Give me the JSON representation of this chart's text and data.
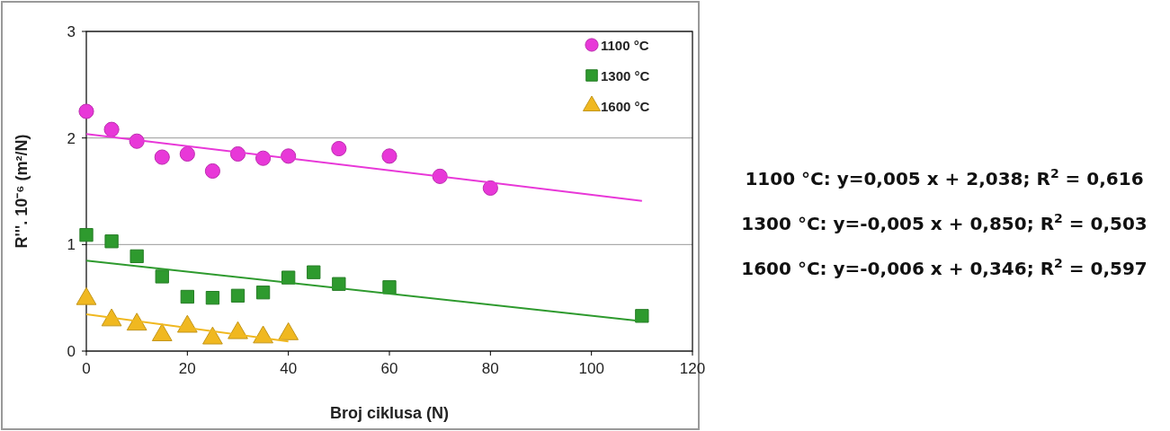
{
  "chart_data": {
    "type": "scatter",
    "xlabel": "Broj ciklusa (N)",
    "ylabel": "R'''. 10⁻⁶ (m²/N)",
    "xlim": [
      0,
      120
    ],
    "xticks": [
      0,
      20,
      40,
      60,
      80,
      100,
      120
    ],
    "ylim": [
      0,
      3
    ],
    "yticks": [
      0,
      1,
      2,
      3
    ],
    "grid": "y",
    "legend": "top right",
    "series": [
      {
        "name": "1100 °C",
        "color": "#e838d8",
        "marker": "circle",
        "x": [
          0,
          5,
          10,
          15,
          20,
          25,
          30,
          35,
          40,
          50,
          60,
          70,
          80
        ],
        "values": [
          2.25,
          2.08,
          1.97,
          1.82,
          1.85,
          1.69,
          1.85,
          1.81,
          1.83,
          1.9,
          1.83,
          1.64,
          1.53
        ]
      },
      {
        "name": "1300 °C",
        "color": "#2e9a2e",
        "marker": "square",
        "x": [
          0,
          5,
          10,
          15,
          20,
          25,
          30,
          35,
          40,
          45,
          50,
          60,
          110
        ],
        "values": [
          1.09,
          1.03,
          0.89,
          0.7,
          0.51,
          0.5,
          0.52,
          0.55,
          0.69,
          0.74,
          0.63,
          0.6,
          0.33
        ]
      },
      {
        "name": "1600 °C",
        "color": "#f0b820",
        "marker": "triangle",
        "x": [
          0,
          5,
          10,
          15,
          20,
          25,
          30,
          35,
          40
        ],
        "values": [
          0.49,
          0.29,
          0.25,
          0.15,
          0.23,
          0.12,
          0.17,
          0.13,
          0.16
        ]
      },
      {
        "type": "line",
        "color": "#e838d8",
        "marker": "none",
        "x": [
          0,
          110
        ],
        "values": [
          2.038,
          1.41
        ]
      },
      {
        "type": "line",
        "color": "#2e9a2e",
        "marker": "none",
        "x": [
          0,
          110
        ],
        "values": [
          0.85,
          0.28
        ]
      },
      {
        "type": "line",
        "color": "#f0b820",
        "marker": "none",
        "x": [
          0,
          40
        ],
        "values": [
          0.346,
          0.09
        ]
      }
    ],
    "annotations": [
      "1100 °C: y=0,005 x + 2,038; R$^{2}$ = 0,616",
      "1300 °C: y=-0,005 x + 0,850; R$^{2}$ = 0,503",
      "1600 °C: y=-0,006 x + 0,346; R$^{2}$ = 0,597"
    ]
  }
}
